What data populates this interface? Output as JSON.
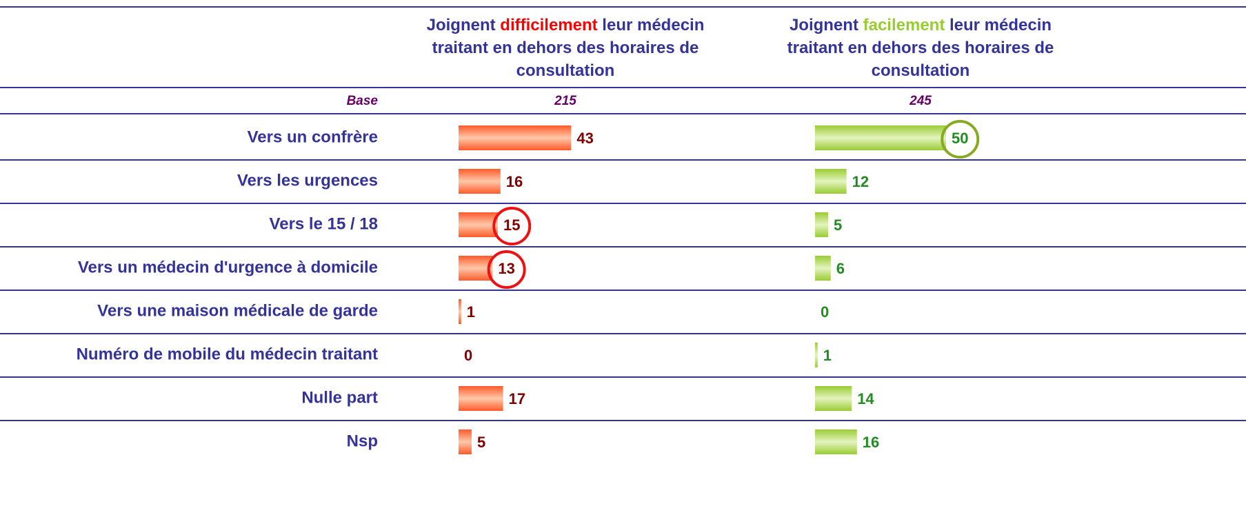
{
  "base_label": "Base",
  "categories": [
    "Vers un confrère",
    "Vers les urgences",
    "Vers le 15 / 18",
    "Vers un médecin d'urgence à domicile",
    "Vers une maison médicale de garde",
    "Numéro de mobile du médecin traitant",
    "Nulle part",
    "Nsp"
  ],
  "chart_data": [
    {
      "type": "bar",
      "title_lines": [
        [
          "Joignent ",
          "difficilement",
          " leur médecin"
        ],
        [
          "traitant en dehors des horaires de"
        ],
        [
          "consultation"
        ]
      ],
      "emphasis_color": "#ff0000",
      "base": 215,
      "values": [
        43,
        16,
        15,
        13,
        1,
        0,
        17,
        5
      ],
      "circled": [
        false,
        false,
        true,
        true,
        false,
        false,
        false,
        false
      ],
      "color": "#ff6633",
      "label_color": "#800000",
      "circle_color": "#ee1111"
    },
    {
      "type": "bar",
      "title_lines": [
        [
          "Joignent ",
          "facilement",
          " leur médecin"
        ],
        [
          "traitant en dehors des horaires de"
        ],
        [
          "consultation"
        ]
      ],
      "emphasis_color": "#99cc33",
      "base": 245,
      "values": [
        50,
        12,
        5,
        6,
        0,
        1,
        14,
        16
      ],
      "circled": [
        true,
        false,
        false,
        false,
        false,
        false,
        false,
        false
      ],
      "color": "#99cc33",
      "label_color": "#228b22",
      "circle_color": "#88aa22"
    }
  ]
}
